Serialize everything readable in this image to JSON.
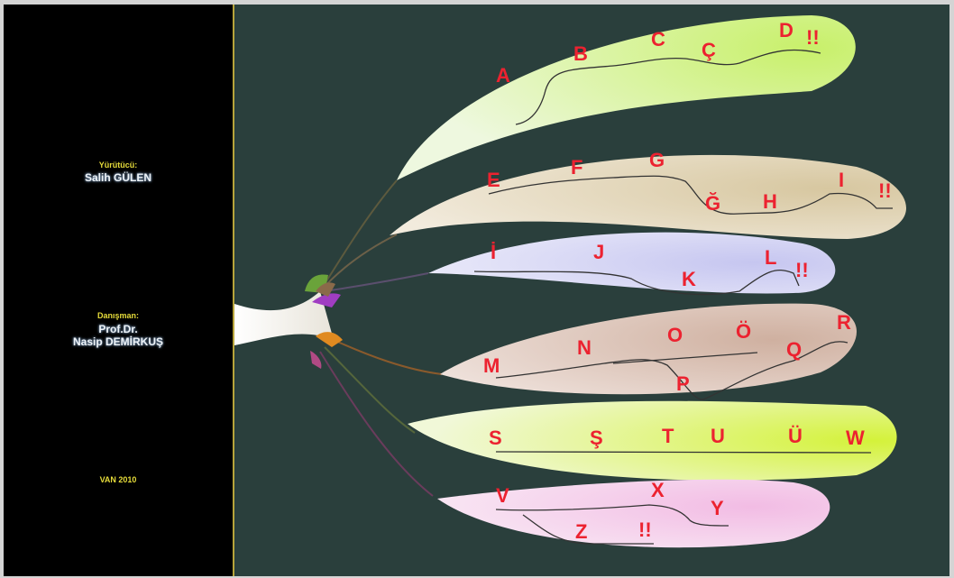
{
  "sidebar": {
    "executor_label": "Yürütücü:",
    "executor_name": "Salih GÜLEN",
    "advisor_label": "Danışman:",
    "advisor_title": "Prof.Dr.",
    "advisor_name": "Nasip DEMİRKUŞ",
    "place_year": "VAN 2010"
  },
  "leaves": [
    {
      "name": "leaf-1",
      "color": "#d9f7a8",
      "letters": [
        "A",
        "B",
        "C",
        "Ç",
        "D",
        "!!"
      ]
    },
    {
      "name": "leaf-2",
      "color": "#e4d6b6",
      "letters": [
        "E",
        "F",
        "G",
        "Ğ",
        "H",
        "I",
        "!!"
      ]
    },
    {
      "name": "leaf-3",
      "color": "#d8d8f4",
      "letters": [
        "İ",
        "J",
        "K",
        "L",
        "!!"
      ]
    },
    {
      "name": "leaf-4",
      "color": "#dcc4b6",
      "letters": [
        "M",
        "N",
        "O",
        "Ö",
        "P",
        "Q",
        "R"
      ]
    },
    {
      "name": "leaf-5",
      "color": "#e2f59a",
      "letters": [
        "S",
        "Ş",
        "T",
        "U",
        "Ü",
        "W"
      ]
    },
    {
      "name": "leaf-6",
      "color": "#f4d2ec",
      "letters": [
        "V",
        "X",
        "Y",
        "Z",
        "!!"
      ]
    }
  ]
}
